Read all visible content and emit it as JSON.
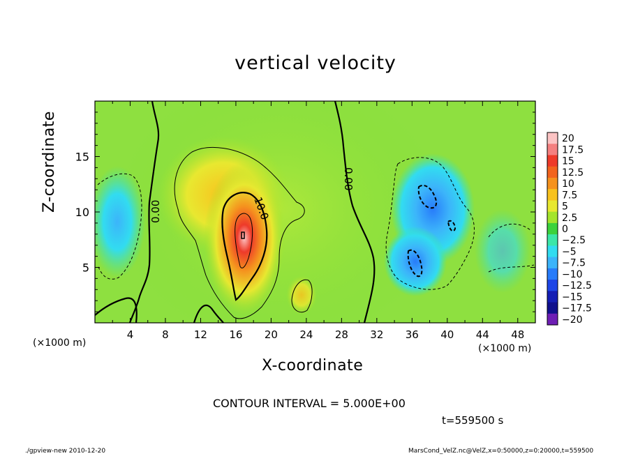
{
  "chart_data": {
    "type": "heatmap",
    "title": "vertical velocity",
    "xlabel": "X-coordinate",
    "ylabel": "Z-coordinate",
    "x_unit": "(×1000 m)",
    "xlim": [
      0,
      50
    ],
    "ylim": [
      0,
      20
    ],
    "x_ticks": [
      "4",
      "8",
      "12",
      "16",
      "20",
      "24",
      "28",
      "32",
      "36",
      "40",
      "44",
      "48"
    ],
    "x_tick_values": [
      4,
      8,
      12,
      16,
      20,
      24,
      28,
      32,
      36,
      40,
      44,
      48
    ],
    "y_ticks": [
      "5",
      "10",
      "15"
    ],
    "y_tick_values": [
      5,
      10,
      15
    ],
    "colorbar": {
      "labels": [
        "20",
        "17.5",
        "15",
        "12.5",
        "10",
        "7.5",
        "5",
        "2.5",
        "0",
        "−2.5",
        "−5",
        "−7.5",
        "−10",
        "−12.5",
        "−15",
        "−17.5",
        "−20"
      ],
      "values": [
        20,
        17.5,
        15,
        12.5,
        10,
        7.5,
        5,
        2.5,
        0,
        -2.5,
        -5,
        -7.5,
        -10,
        -12.5,
        -15,
        -17.5,
        -20
      ],
      "colors": [
        "#fcc4c4",
        "#f48080",
        "#ee3a2a",
        "#f2641e",
        "#f5921e",
        "#f8c21e",
        "#e8e830",
        "#a4e42c",
        "#3cd23c",
        "#3ce6a8",
        "#32dcf0",
        "#3cb4fa",
        "#287cfa",
        "#1e46e6",
        "#141eb4",
        "#10108c",
        "#6e1eb4"
      ]
    },
    "contour_labels": [
      "0.00",
      "0.00",
      "10.0"
    ],
    "contour_interval": "CONTOUR INTERVAL = 5.000E+00",
    "time": "t=559500 s",
    "features": [
      {
        "name": "updraft",
        "x": 17,
        "z": 8,
        "max": 20
      },
      {
        "name": "weak-updraft",
        "x": 20,
        "z": 12,
        "max": 7.5
      },
      {
        "name": "downdraft-left",
        "x": 3,
        "z": 8,
        "min": -5
      },
      {
        "name": "downdraft-right-upper",
        "x": 38,
        "z": 11,
        "min": -10
      },
      {
        "name": "downdraft-right-lower",
        "x": 36,
        "z": 6,
        "min": -10
      }
    ]
  },
  "footer": {
    "left": "./gpview-new  2010-12-20",
    "right": "MarsCond_VelZ.nc@VelZ,x=0:50000,z=0:20000,t=559500"
  }
}
